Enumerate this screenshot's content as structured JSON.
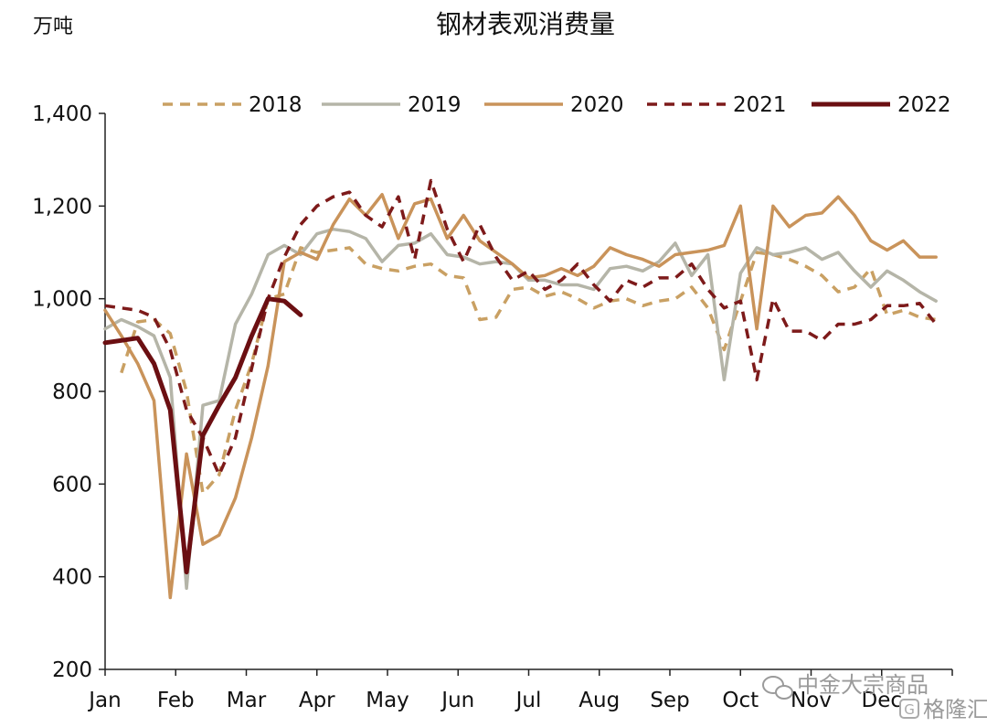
{
  "chart_data": {
    "type": "line",
    "title": "钢材表观消费量",
    "ylabel": "万吨",
    "xlabel": "",
    "ylim": [
      200,
      1400
    ],
    "yticks": [
      "1,400",
      "1,200",
      "1,000",
      "800",
      "600",
      "400",
      "200"
    ],
    "ytick_values": [
      1400,
      1200,
      1000,
      800,
      600,
      400,
      200
    ],
    "xlim": [
      0,
      52
    ],
    "categories": [
      "Jan",
      "Feb",
      "Mar",
      "Apr",
      "May",
      "Jun",
      "Jul",
      "Aug",
      "Sep",
      "Oct",
      "Nov",
      "Dec"
    ],
    "legend_position": "top",
    "grid": false,
    "series": [
      {
        "name": "2018",
        "color": "#c9a063",
        "dash": "dashed",
        "x": [
          1,
          2,
          3,
          4,
          5,
          6,
          7,
          8,
          9,
          10,
          11,
          12,
          13,
          14,
          15,
          16,
          17,
          18,
          19,
          20,
          21,
          22,
          23,
          24,
          25,
          26,
          27,
          28,
          29,
          30,
          31,
          32,
          33,
          34,
          35,
          36,
          37,
          38,
          39,
          40,
          41,
          42,
          43,
          44,
          45,
          46,
          47,
          48,
          49,
          50,
          51
        ],
        "values": [
          840,
          950,
          955,
          925,
          800,
          580,
          620,
          760,
          860,
          1000,
          1010,
          1110,
          1100,
          1105,
          1110,
          1075,
          1065,
          1060,
          1070,
          1075,
          1050,
          1045,
          955,
          960,
          1020,
          1025,
          1005,
          1015,
          1000,
          980,
          995,
          1000,
          985,
          995,
          1000,
          1025,
          980,
          890,
          995,
          1100,
          1095,
          1085,
          1070,
          1050,
          1015,
          1025,
          1065,
          965,
          975,
          960,
          955
        ]
      },
      {
        "name": "2019",
        "color": "#b5b5a8",
        "dash": "solid",
        "x": [
          0,
          1,
          2,
          3,
          4,
          5,
          6,
          7,
          8,
          9,
          10,
          11,
          12,
          13,
          14,
          15,
          16,
          17,
          18,
          19,
          20,
          21,
          22,
          23,
          24,
          25,
          26,
          27,
          28,
          29,
          30,
          31,
          32,
          33,
          34,
          35,
          36,
          37,
          38,
          39,
          40,
          41,
          42,
          43,
          44,
          45,
          46,
          47,
          48,
          49,
          50,
          51
        ],
        "values": [
          935,
          955,
          940,
          920,
          830,
          375,
          770,
          780,
          945,
          1010,
          1095,
          1115,
          1095,
          1140,
          1150,
          1145,
          1130,
          1080,
          1115,
          1120,
          1140,
          1095,
          1090,
          1075,
          1080,
          1075,
          1040,
          1040,
          1030,
          1030,
          1020,
          1065,
          1070,
          1060,
          1080,
          1120,
          1050,
          1095,
          825,
          1055,
          1110,
          1095,
          1100,
          1110,
          1085,
          1100,
          1060,
          1025,
          1060,
          1040,
          1015,
          995
        ]
      },
      {
        "name": "2020",
        "color": "#c9935a",
        "dash": "solid",
        "x": [
          0,
          1,
          2,
          3,
          4,
          5,
          6,
          7,
          8,
          9,
          10,
          11,
          12,
          13,
          14,
          15,
          16,
          17,
          18,
          19,
          20,
          21,
          22,
          23,
          24,
          25,
          26,
          27,
          28,
          29,
          30,
          31,
          32,
          33,
          34,
          35,
          36,
          37,
          38,
          39,
          40,
          41,
          42,
          43,
          44,
          45,
          46,
          47,
          48,
          49,
          50,
          51
        ],
        "values": [
          975,
          920,
          860,
          780,
          355,
          665,
          470,
          490,
          570,
          700,
          855,
          1080,
          1100,
          1085,
          1160,
          1215,
          1180,
          1225,
          1130,
          1205,
          1215,
          1130,
          1180,
          1125,
          1100,
          1075,
          1045,
          1050,
          1065,
          1050,
          1070,
          1110,
          1095,
          1085,
          1070,
          1095,
          1100,
          1105,
          1115,
          1200,
          935,
          1200,
          1155,
          1180,
          1185,
          1220,
          1180,
          1125,
          1105,
          1125,
          1090,
          1090
        ]
      },
      {
        "name": "2021",
        "color": "#7d1a1a",
        "dash": "dashed",
        "x": [
          0,
          1,
          2,
          3,
          4,
          5,
          6,
          7,
          8,
          9,
          10,
          11,
          12,
          13,
          14,
          15,
          16,
          17,
          18,
          19,
          20,
          21,
          22,
          23,
          24,
          25,
          26,
          27,
          28,
          29,
          30,
          31,
          32,
          33,
          34,
          35,
          36,
          37,
          38,
          39,
          40,
          41,
          42,
          43,
          44,
          45,
          46,
          47,
          48,
          49,
          50,
          51
        ],
        "values": [
          985,
          980,
          975,
          960,
          890,
          760,
          700,
          620,
          700,
          850,
          1000,
          1090,
          1160,
          1200,
          1220,
          1230,
          1180,
          1155,
          1220,
          1085,
          1255,
          1150,
          1080,
          1160,
          1090,
          1040,
          1060,
          1020,
          1040,
          1075,
          1030,
          995,
          1040,
          1025,
          1045,
          1045,
          1075,
          1020,
          980,
          995,
          825,
          1000,
          930,
          930,
          910,
          945,
          945,
          955,
          985,
          985,
          990,
          945
        ]
      },
      {
        "name": "2022",
        "color": "#6b0f12",
        "dash": "solid",
        "x": [
          0,
          1,
          2,
          3,
          4,
          5,
          6,
          7,
          8,
          9,
          10,
          11,
          12
        ],
        "values": [
          905,
          910,
          915,
          860,
          760,
          410,
          705,
          770,
          830,
          920,
          1000,
          995,
          965
        ]
      }
    ]
  },
  "watermark": {
    "text1": "中金大宗商品",
    "text2": "格隆汇"
  }
}
